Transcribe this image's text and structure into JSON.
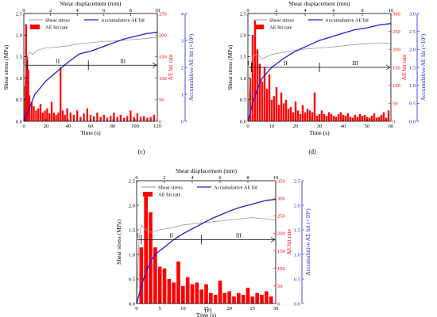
{
  "chart_data": [
    {
      "type": "line",
      "panel_label": "(c)",
      "title": "",
      "x_label": "Time (s)",
      "x_ticks": [
        "0",
        "20",
        "40",
        "60",
        "80",
        "100",
        "120"
      ],
      "xlim": [
        0,
        120
      ],
      "top_axis_label": "Shear displacement (mm)",
      "top_ticks": [
        "0",
        "2",
        "4",
        "6",
        "8",
        "10"
      ],
      "top_lim": [
        0,
        10
      ],
      "left_label": "Shear stress (MPa)",
      "left_ticks": [
        "0.0",
        "0.5",
        "1.0",
        "1.5",
        "2.0",
        "2.5"
      ],
      "left_lim": [
        0,
        2.5
      ],
      "right1_label": "AE hit rate",
      "right1_ticks": [
        "0",
        "50",
        "100",
        "150",
        "200",
        "250"
      ],
      "right1_lim": [
        0,
        250
      ],
      "right2_label": "Accumulative AE hit (×10⁵)",
      "right2_ticks": [
        "0",
        "1",
        "2",
        "3",
        "4"
      ],
      "right2_lim": [
        0,
        4
      ],
      "legend": [
        "Shear stress",
        "Accumulative AE hit",
        "AE hit rate"
      ],
      "stage_labels": [
        "I",
        "II",
        "III"
      ],
      "stage_boundaries": [
        3,
        58
      ],
      "stage_level": 1.3,
      "series": [
        {
          "name": "Shear stress",
          "color": "#9a9a9a",
          "axis": "left",
          "x": [
            0,
            1,
            2,
            3,
            5,
            8,
            12,
            20,
            30,
            40,
            50,
            60,
            70,
            80,
            90,
            100,
            110,
            120
          ],
          "y": [
            0,
            0.9,
            1.4,
            1.5,
            1.6,
            1.55,
            1.65,
            1.7,
            1.72,
            1.75,
            1.8,
            1.82,
            1.85,
            1.86,
            1.88,
            1.9,
            1.92,
            1.95
          ]
        },
        {
          "name": "Accumulative AE hit",
          "color": "#1f1fd0",
          "axis": "right2",
          "x": [
            0,
            2,
            5,
            10,
            20,
            30,
            40,
            50,
            60,
            70,
            80,
            90,
            100,
            110,
            120
          ],
          "y": [
            0,
            0.2,
            0.5,
            1.0,
            1.5,
            1.85,
            2.2,
            2.5,
            2.6,
            2.75,
            2.9,
            3.05,
            3.15,
            3.25,
            3.3
          ]
        },
        {
          "name": "AE hit rate",
          "color": "#ff0000",
          "axis": "right1",
          "type": "bar",
          "x": [
            1,
            2,
            3,
            4,
            5,
            7,
            9,
            11,
            13,
            15,
            17,
            19,
            21,
            23,
            25,
            27,
            29,
            31,
            33,
            35,
            37,
            39,
            42,
            45,
            48,
            51,
            54,
            57,
            60,
            63,
            66,
            69,
            72,
            75,
            78,
            81,
            84,
            87,
            90,
            93,
            96,
            99,
            102,
            105,
            108,
            111,
            114,
            117
          ],
          "y": [
            80,
            225,
            150,
            120,
            60,
            45,
            35,
            25,
            30,
            40,
            20,
            25,
            30,
            18,
            45,
            20,
            15,
            20,
            125,
            25,
            15,
            30,
            20,
            15,
            25,
            10,
            18,
            30,
            15,
            12,
            20,
            10,
            15,
            8,
            12,
            20,
            10,
            15,
            8,
            12,
            25,
            10,
            18,
            10,
            12,
            8,
            10,
            15
          ]
        }
      ]
    },
    {
      "type": "line",
      "panel_label": "(d)",
      "title": "",
      "x_label": "Time (s)",
      "x_ticks": [
        "0",
        "10",
        "20",
        "30",
        "40",
        "50",
        "60"
      ],
      "xlim": [
        0,
        60
      ],
      "top_axis_label": "Shear displacement (mm)",
      "top_ticks": [
        "0",
        "2",
        "4",
        "6",
        "8",
        "10"
      ],
      "top_lim": [
        0,
        10
      ],
      "left_label": "Shear stress (MPa)",
      "left_ticks": [
        "0.0",
        "0.5",
        "1.0",
        "1.5",
        "2.0",
        "2.5"
      ],
      "left_lim": [
        0,
        2.5
      ],
      "right1_label": "AE hit rate",
      "right1_ticks": [
        "0",
        "50",
        "100",
        "150",
        "200",
        "250",
        "300"
      ],
      "right1_lim": [
        0,
        300
      ],
      "right2_label": "Accumulative AE hit (×10⁵)",
      "right2_ticks": [
        "0.0",
        "0.5",
        "1.0",
        "1.5",
        "2.0",
        "2.5",
        "3.0"
      ],
      "right2_lim": [
        0,
        3
      ],
      "legend": [
        "Shear stress",
        "Accumulative AE hit",
        "AE hit rate"
      ],
      "stage_labels": [
        "I",
        "II",
        "III"
      ],
      "stage_boundaries": [
        1.5,
        30
      ],
      "stage_level": 1.25,
      "series": [
        {
          "name": "Shear stress",
          "color": "#9a9a9a",
          "axis": "left",
          "x": [
            0,
            1,
            2,
            4,
            6,
            10,
            15,
            20,
            25,
            30,
            35,
            40,
            45,
            50,
            55,
            60
          ],
          "y": [
            0,
            1.2,
            1.5,
            1.55,
            1.45,
            1.55,
            1.6,
            1.65,
            1.68,
            1.7,
            1.72,
            1.75,
            1.78,
            1.8,
            1.82,
            1.8
          ]
        },
        {
          "name": "Accumulative AE hit",
          "color": "#1f1fd0",
          "axis": "right2",
          "x": [
            0,
            2,
            4,
            6,
            10,
            15,
            20,
            25,
            30,
            35,
            40,
            45,
            50,
            55,
            60
          ],
          "y": [
            0,
            0.5,
            0.9,
            1.2,
            1.5,
            1.75,
            1.95,
            2.1,
            2.25,
            2.35,
            2.45,
            2.55,
            2.6,
            2.68,
            2.72
          ]
        },
        {
          "name": "AE hit rate",
          "color": "#ff0000",
          "axis": "right1",
          "type": "bar",
          "x": [
            1,
            2,
            3,
            4,
            5,
            6,
            7,
            8,
            9,
            10,
            11,
            12,
            13,
            14,
            15,
            16,
            17,
            18,
            19,
            20,
            21,
            22,
            23,
            24,
            25,
            26,
            27,
            28,
            29,
            30,
            31,
            32,
            33,
            34,
            35,
            36,
            37,
            38,
            39,
            40,
            41,
            42,
            43,
            44,
            45,
            46,
            47,
            48,
            49,
            50,
            51,
            52,
            53,
            54,
            55,
            56,
            57,
            58,
            59
          ],
          "y": [
            120,
            240,
            280,
            200,
            160,
            110,
            150,
            90,
            130,
            60,
            70,
            95,
            45,
            80,
            50,
            60,
            35,
            40,
            25,
            55,
            30,
            20,
            45,
            25,
            35,
            30,
            25,
            80,
            15,
            20,
            30,
            20,
            15,
            25,
            20,
            15,
            12,
            20,
            25,
            18,
            15,
            22,
            12,
            10,
            18,
            12,
            20,
            15,
            18,
            12,
            10,
            15,
            22,
            10,
            12,
            18,
            25,
            10,
            30
          ]
        }
      ]
    },
    {
      "type": "line",
      "panel_label": "(e)",
      "title": "",
      "x_label": "Time (s)",
      "x_ticks": [
        "0",
        "5",
        "10",
        "15",
        "20",
        "25",
        "30"
      ],
      "xlim": [
        0,
        30
      ],
      "top_axis_label": "Shear displacement (mm)",
      "top_ticks": [
        "0",
        "2",
        "4",
        "6",
        "8",
        "10"
      ],
      "top_lim": [
        0,
        10
      ],
      "left_label": "Shear stress (MPa)",
      "left_ticks": [
        "0.0",
        "0.5",
        "1.0",
        "1.5",
        "2.0",
        "2.5"
      ],
      "left_lim": [
        0,
        2.5
      ],
      "right1_label": "AE hit rate",
      "right1_ticks": [
        "0",
        "50",
        "100",
        "150",
        "200",
        "250",
        "300",
        "350"
      ],
      "right1_lim": [
        0,
        350
      ],
      "right2_label": "Accumulative AE hit (×10⁵)",
      "right2_ticks": [
        "0.0",
        "0.5",
        "1.0",
        "1.5",
        "2.0",
        "2.5"
      ],
      "right2_lim": [
        0,
        2.5
      ],
      "legend": [
        "Shear stress",
        "Accumulative AE hit",
        "AE hit rate"
      ],
      "stage_labels": [
        "I",
        "II",
        "III"
      ],
      "stage_boundaries": [
        1,
        14
      ],
      "stage_level": 1.3,
      "series": [
        {
          "name": "Shear stress",
          "color": "#9a9a9a",
          "axis": "left",
          "x": [
            0,
            0.5,
            1,
            2,
            3,
            5,
            8,
            10,
            12,
            15,
            18,
            20,
            22,
            25,
            28,
            30
          ],
          "y": [
            0,
            1.3,
            1.6,
            1.5,
            1.45,
            1.5,
            1.55,
            1.6,
            1.62,
            1.65,
            1.68,
            1.7,
            1.72,
            1.75,
            1.72,
            1.7
          ]
        },
        {
          "name": "Accumulative AE hit",
          "color": "#1f1fd0",
          "axis": "right2",
          "x": [
            0,
            1,
            2,
            3,
            4,
            6,
            8,
            10,
            12,
            14,
            16,
            18,
            20,
            22,
            24,
            26,
            28,
            30
          ],
          "y": [
            0,
            0.35,
            0.65,
            0.85,
            1.0,
            1.15,
            1.3,
            1.42,
            1.52,
            1.62,
            1.72,
            1.8,
            1.88,
            1.95,
            2.0,
            2.05,
            2.1,
            2.12
          ]
        },
        {
          "name": "AE hit rate",
          "color": "#ff0000",
          "axis": "right1",
          "type": "bar",
          "x": [
            1,
            2,
            3,
            4,
            5,
            6,
            7,
            8,
            9,
            10,
            11,
            12,
            13,
            14,
            15,
            16,
            17,
            18,
            19,
            20,
            21,
            22,
            23,
            24,
            25,
            26,
            27,
            28,
            29
          ],
          "y": [
            160,
            310,
            260,
            160,
            105,
            100,
            70,
            60,
            120,
            50,
            75,
            55,
            60,
            40,
            55,
            30,
            25,
            65,
            30,
            35,
            20,
            30,
            25,
            45,
            20,
            30,
            25,
            35,
            20
          ]
        }
      ]
    }
  ]
}
